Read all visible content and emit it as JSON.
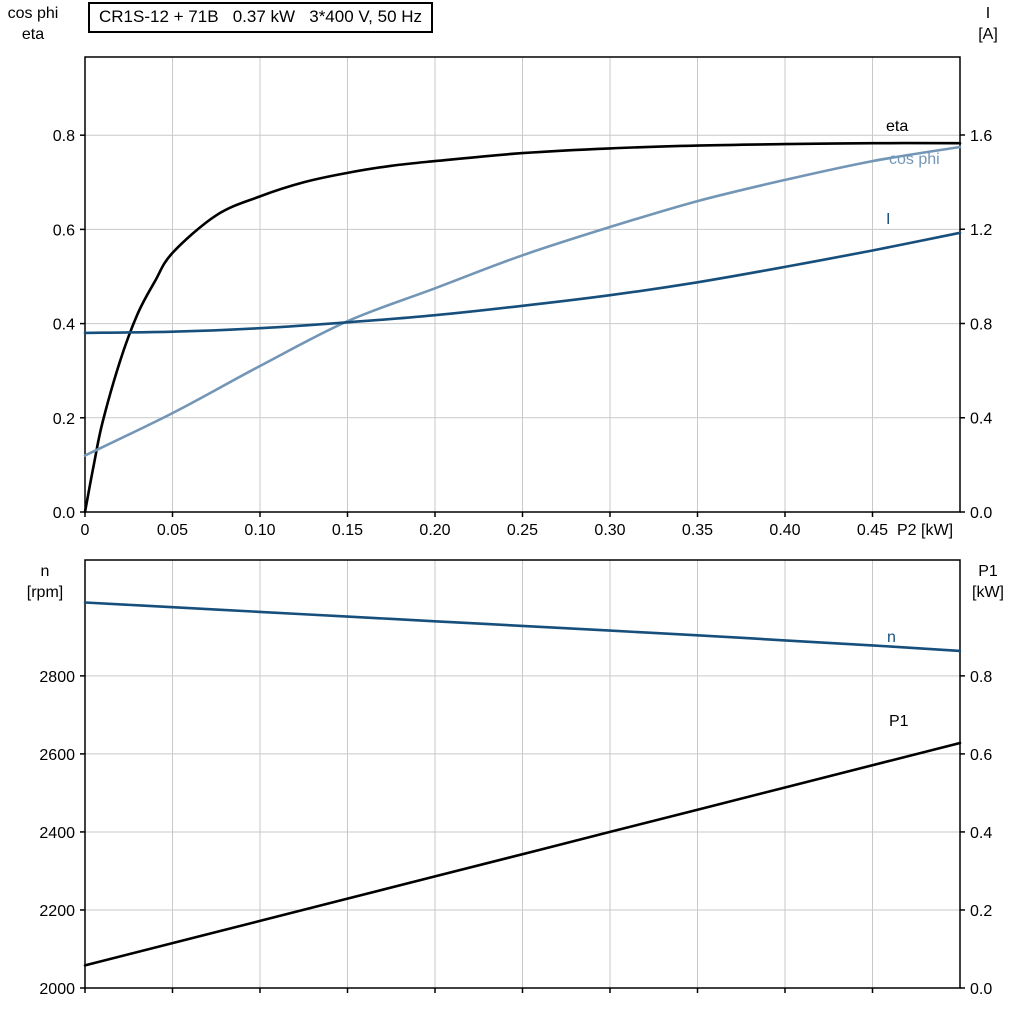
{
  "header": {
    "title": "CR1S-12 + 71B   0.37 kW   3*400 V, 50 Hz"
  },
  "colors": {
    "black": "#000000",
    "light_blue": "#7396b6",
    "dark_blue": "#174f7c",
    "grid": "#c9c9c9",
    "frame": "#000000"
  },
  "chart_data": [
    {
      "type": "line",
      "title": "CR1S-12 + 71B   0.37 kW   3*400 V, 50 Hz",
      "grid": true,
      "x_axis": {
        "label": "P2 [kW]",
        "min": 0,
        "max": 0.5,
        "ticks": [
          0,
          0.05,
          0.1,
          0.15,
          0.2,
          0.25,
          0.3,
          0.35,
          0.4,
          0.45
        ],
        "tick_labels": [
          "0",
          "0.05",
          "0.10",
          "0.15",
          "0.20",
          "0.25",
          "0.30",
          "0.35",
          "0.40",
          "0.45"
        ]
      },
      "y_left": {
        "label_lines": [
          "cos phi",
          "eta"
        ],
        "min": 0,
        "max": 0.966,
        "ticks": [
          0.0,
          0.2,
          0.4,
          0.6,
          0.8
        ],
        "tick_labels": [
          "0.0",
          "0.2",
          "0.4",
          "0.6",
          "0.8"
        ]
      },
      "y_right": {
        "label_lines": [
          "I",
          "[A]"
        ],
        "min": 0,
        "max": 1.931,
        "ticks": [
          0.0,
          0.4,
          0.8,
          1.2,
          1.6
        ],
        "tick_labels": [
          "0.0",
          "0.4",
          "0.8",
          "1.2",
          "1.6"
        ]
      },
      "series": [
        {
          "name": "eta",
          "axis": "left",
          "color": "#000000",
          "x": [
            0,
            0.005,
            0.01,
            0.02,
            0.03,
            0.04,
            0.05,
            0.075,
            0.1,
            0.125,
            0.15,
            0.175,
            0.2,
            0.25,
            0.3,
            0.35,
            0.4,
            0.45,
            0.5
          ],
          "y": [
            0,
            0.1,
            0.19,
            0.32,
            0.42,
            0.49,
            0.55,
            0.63,
            0.67,
            0.7,
            0.72,
            0.735,
            0.745,
            0.762,
            0.772,
            0.778,
            0.781,
            0.783,
            0.783
          ]
        },
        {
          "name": "cos phi",
          "axis": "left",
          "color": "#7396b6",
          "x": [
            0,
            0.05,
            0.1,
            0.15,
            0.2,
            0.25,
            0.3,
            0.35,
            0.4,
            0.45,
            0.5
          ],
          "y": [
            0.12,
            0.21,
            0.31,
            0.405,
            0.475,
            0.545,
            0.605,
            0.66,
            0.705,
            0.745,
            0.775
          ]
        },
        {
          "name": "I",
          "axis": "right",
          "color": "#174f7c",
          "x": [
            0,
            0.05,
            0.1,
            0.15,
            0.2,
            0.25,
            0.3,
            0.35,
            0.4,
            0.45,
            0.5
          ],
          "y": [
            0.76,
            0.765,
            0.78,
            0.805,
            0.835,
            0.875,
            0.92,
            0.975,
            1.04,
            1.11,
            1.185
          ]
        }
      ]
    },
    {
      "type": "line",
      "title": "",
      "grid": true,
      "x_axis": {
        "label": "",
        "min": 0,
        "max": 0.5,
        "ticks": [
          0,
          0.05,
          0.1,
          0.15,
          0.2,
          0.25,
          0.3,
          0.35,
          0.4,
          0.45
        ],
        "tick_labels": []
      },
      "y_left": {
        "label_lines": [
          "n",
          "[rpm]"
        ],
        "min": 2000,
        "max": 3097,
        "ticks": [
          2000,
          2200,
          2400,
          2600,
          2800
        ],
        "tick_labels": [
          "2000",
          "2200",
          "2400",
          "2600",
          "2800"
        ]
      },
      "y_right": {
        "label_lines": [
          "P1",
          "[kW]"
        ],
        "min": 0,
        "max": 1.097,
        "ticks": [
          0.0,
          0.2,
          0.4,
          0.6,
          0.8
        ],
        "tick_labels": [
          "0.0",
          "0.2",
          "0.4",
          "0.6",
          "0.8"
        ]
      },
      "series": [
        {
          "name": "n",
          "axis": "left",
          "color": "#174f7c",
          "x": [
            0,
            0.05,
            0.1,
            0.15,
            0.2,
            0.25,
            0.3,
            0.35,
            0.4,
            0.45,
            0.5
          ],
          "y": [
            2988,
            2976,
            2964,
            2952,
            2940,
            2928,
            2916,
            2904,
            2891,
            2878,
            2864
          ]
        },
        {
          "name": "P1",
          "axis": "right",
          "color": "#000000",
          "x": [
            0,
            0.1,
            0.2,
            0.3,
            0.4,
            0.5
          ],
          "y": [
            0.058,
            0.172,
            0.286,
            0.4,
            0.514,
            0.628
          ]
        }
      ]
    }
  ]
}
